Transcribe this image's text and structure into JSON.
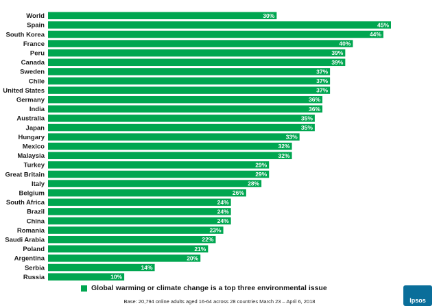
{
  "chart_data": {
    "type": "bar",
    "orientation": "horizontal",
    "categories": [
      "World",
      "Spain",
      "South Korea",
      "France",
      "Peru",
      "Canada",
      "Sweden",
      "Chile",
      "United States",
      "Germany",
      "India",
      "Australia",
      "Japan",
      "Hungary",
      "Mexico",
      "Malaysia",
      "Turkey",
      "Great Britain",
      "Italy",
      "Belgium",
      "South Africa",
      "Brazil",
      "China",
      "Romania",
      "Saudi Arabia",
      "Poland",
      "Argentina",
      "Serbia",
      "Russia"
    ],
    "values": [
      30,
      45,
      44,
      40,
      39,
      39,
      37,
      37,
      37,
      36,
      36,
      35,
      35,
      33,
      32,
      32,
      29,
      29,
      28,
      26,
      24,
      24,
      24,
      23,
      22,
      21,
      20,
      14,
      10
    ],
    "value_labels": [
      "30%",
      "45%",
      "44%",
      "40%",
      "39%",
      "39%",
      "37%",
      "37%",
      "37%",
      "36%",
      "36%",
      "35%",
      "35%",
      "33%",
      "32%",
      "32%",
      "29%",
      "29%",
      "28%",
      "26%",
      "24%",
      "24%",
      "24%",
      "23%",
      "22%",
      "21%",
      "20%",
      "14%",
      "10%"
    ],
    "series": [
      {
        "name": "Global warming or climate change is a top three environmental issue",
        "color": "#00a650"
      }
    ],
    "xlim": [
      0,
      45
    ],
    "grid": false,
    "legend_position": "bottom"
  },
  "footnote": "Base: 20,794 online adults aged 16-64 across 28 countries  March 23 – April 6, 2018",
  "brand": {
    "logo_text": "Ipsos",
    "logo_color": "#0a6e9a"
  }
}
